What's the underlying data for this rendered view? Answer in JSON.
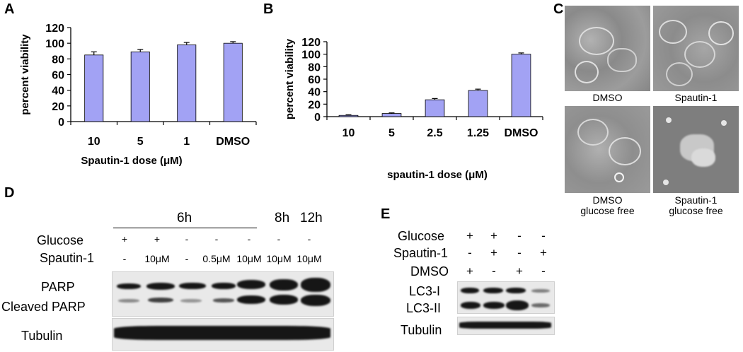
{
  "panels": {
    "a": "A",
    "b": "B",
    "c": "C",
    "d": "D",
    "e": "E"
  },
  "chart_data": [
    {
      "type": "bar",
      "panel": "A",
      "categories": [
        "10",
        "5",
        "1",
        "DMSO"
      ],
      "values": [
        85,
        89,
        98,
        100
      ],
      "errors": [
        4,
        3,
        3,
        2
      ],
      "ylabel": "percent viability",
      "xlabel": "Spautin-1 dose (μM)",
      "ylim": [
        0,
        120
      ],
      "yticks": [
        0,
        20,
        40,
        60,
        80,
        100,
        120
      ],
      "bar_color": "#a2a2f4"
    },
    {
      "type": "bar",
      "panel": "B",
      "categories": [
        "10",
        "5",
        "2.5",
        "1.25",
        "DMSO"
      ],
      "values": [
        2,
        5,
        27,
        42,
        100
      ],
      "errors": [
        1,
        1,
        2,
        2,
        2
      ],
      "ylabel": "percent viability",
      "xlabel": "spautin-1 dose (μM)",
      "ylim": [
        0,
        120
      ],
      "yticks": [
        0,
        20,
        40,
        60,
        80,
        100,
        120
      ],
      "bar_color": "#a2a2f4"
    }
  ],
  "panel_c": {
    "captions": [
      "DMSO",
      "Spautin-1",
      "DMSO\nglucose free",
      "Spautin-1\nglucose free"
    ]
  },
  "panel_d": {
    "time_headers": [
      "6h",
      "8h",
      "12h"
    ],
    "row_labels": {
      "glucose": "Glucose",
      "spautin": "Spautin-1"
    },
    "glucose": [
      "+",
      "+",
      "-",
      "-",
      "-",
      "-",
      "-"
    ],
    "spautin": [
      "-",
      "10μM",
      "-",
      "0.5μM",
      "10μM",
      "10μM",
      "10μM"
    ],
    "blot_labels": {
      "parp": "PARP",
      "cleaved": "Cleaved PARP",
      "tubulin": "Tubulin"
    }
  },
  "panel_e": {
    "row_labels": {
      "glucose": "Glucose",
      "spautin": "Spautin-1",
      "dmso": "DMSO"
    },
    "glucose": [
      "+",
      "+",
      "-",
      "-"
    ],
    "spautin": [
      "-",
      "+",
      "-",
      "+"
    ],
    "dmso": [
      "+",
      "-",
      "+",
      "-"
    ],
    "blot_labels": {
      "lc3i": "LC3-I",
      "lc3ii": "LC3-II",
      "tubulin": "Tubulin"
    }
  }
}
